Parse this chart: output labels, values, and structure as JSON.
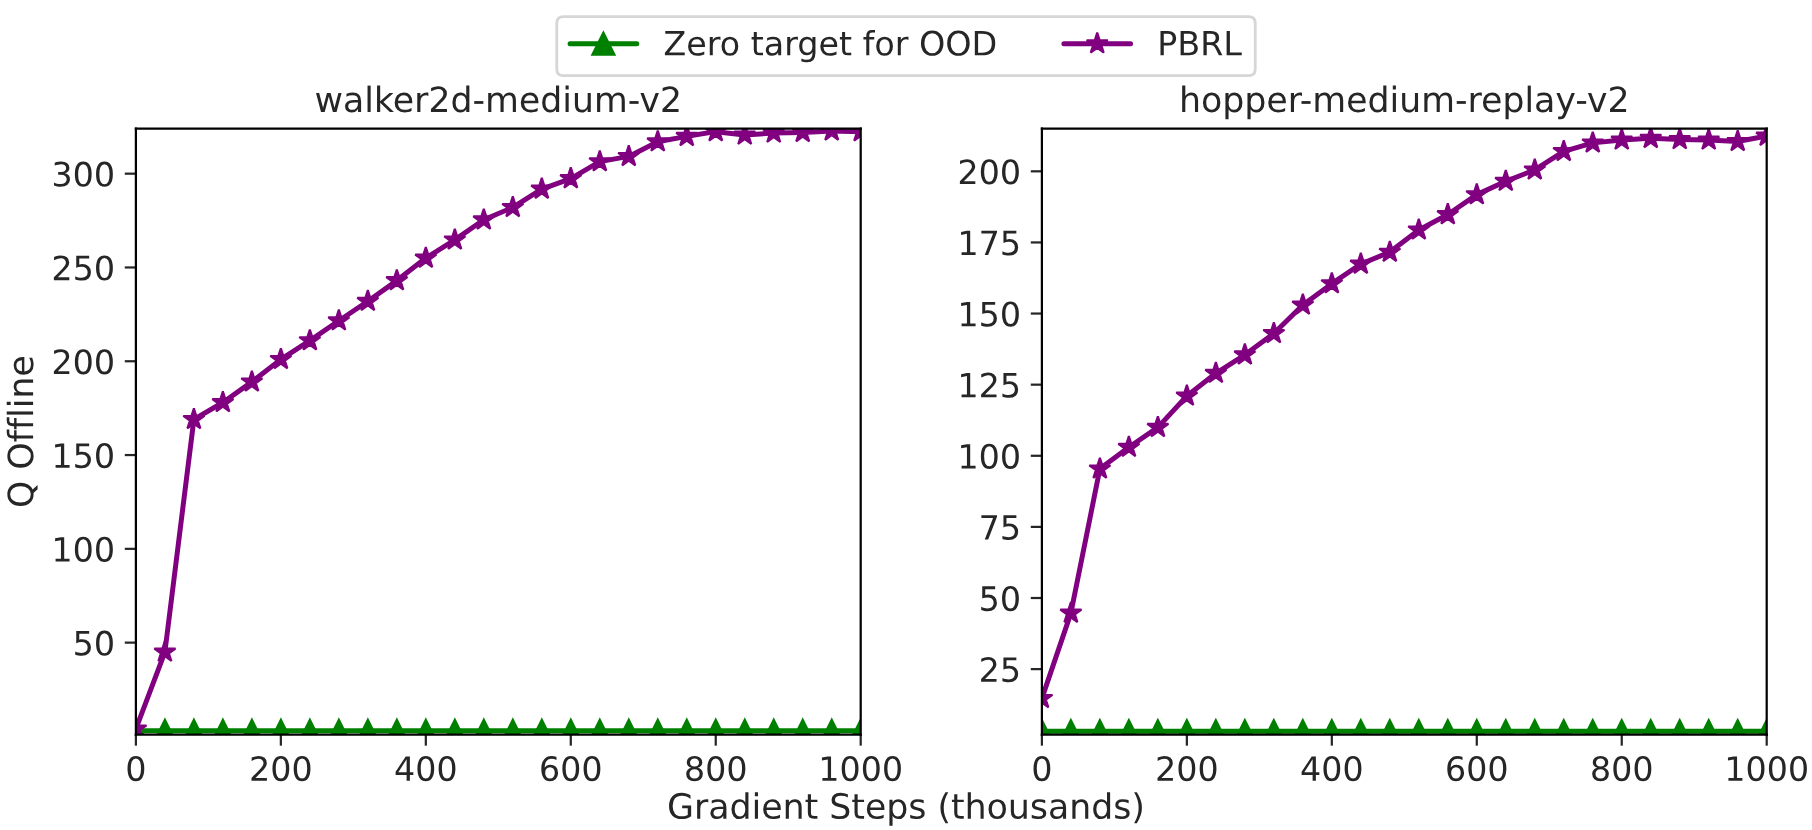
{
  "chart_data": [
    {
      "type": "line",
      "title": "walker2d-medium-v2",
      "ylabel": "Q Offline",
      "xlabel": "Gradient Steps (thousands)",
      "legend": "top",
      "xlim": [
        0,
        1000
      ],
      "ylim": [
        1,
        324
      ],
      "xticks": [
        0,
        200,
        400,
        600,
        800,
        1000
      ],
      "yticks": [
        50,
        100,
        150,
        200,
        250,
        300
      ],
      "grid": false,
      "series": [
        {
          "name": "Zero target for OOD",
          "color": "#008000",
          "marker": "triangle",
          "x": [
            0,
            40,
            80,
            120,
            160,
            200,
            240,
            280,
            320,
            360,
            400,
            440,
            480,
            520,
            560,
            600,
            640,
            680,
            720,
            760,
            800,
            840,
            880,
            920,
            960,
            1000
          ],
          "values": [
            3,
            3,
            3,
            3,
            3,
            3,
            3,
            3,
            3,
            3,
            3,
            3,
            3,
            3,
            3,
            3,
            3,
            3,
            3,
            3,
            3,
            3,
            3,
            3,
            3,
            3
          ]
        },
        {
          "name": "PBRL",
          "color": "#800080",
          "marker": "star",
          "x": [
            0,
            40,
            80,
            120,
            160,
            200,
            240,
            280,
            320,
            360,
            400,
            440,
            480,
            520,
            560,
            600,
            640,
            680,
            720,
            760,
            800,
            840,
            880,
            920,
            960,
            1000
          ],
          "values": [
            4,
            45,
            169,
            178,
            189,
            201,
            211,
            221.6,
            232,
            243,
            255,
            264.7,
            275.4,
            282,
            291.8,
            297.4,
            306.4,
            309.2,
            317,
            319.9,
            322.4,
            320.6,
            321.7,
            322,
            322.8,
            322.4
          ]
        }
      ]
    },
    {
      "type": "line",
      "title": "hopper-medium-replay-v2",
      "xlim": [
        0,
        1000
      ],
      "ylim": [
        2,
        215
      ],
      "xticks": [
        0,
        200,
        400,
        600,
        800,
        1000
      ],
      "yticks": [
        25,
        50,
        75,
        100,
        125,
        150,
        175,
        200
      ],
      "grid": false,
      "series": [
        {
          "name": "Zero target for OOD",
          "color": "#008000",
          "marker": "triangle",
          "x": [
            0,
            40,
            80,
            120,
            160,
            200,
            240,
            280,
            320,
            360,
            400,
            440,
            480,
            520,
            560,
            600,
            640,
            680,
            720,
            760,
            800,
            840,
            880,
            920,
            960,
            1000
          ],
          "values": [
            3.2,
            3.2,
            3.2,
            3.2,
            3.2,
            3.2,
            3.2,
            3.2,
            3.2,
            3.2,
            3.2,
            3.2,
            3.2,
            3.2,
            3.2,
            3.2,
            3.2,
            3.2,
            3.2,
            3.2,
            3.2,
            3.2,
            3.2,
            3.2,
            3.2,
            3.2
          ]
        },
        {
          "name": "PBRL",
          "color": "#800080",
          "marker": "star",
          "x": [
            0,
            40,
            80,
            120,
            160,
            200,
            240,
            280,
            320,
            360,
            400,
            440,
            480,
            520,
            560,
            600,
            640,
            680,
            720,
            760,
            800,
            840,
            880,
            920,
            960,
            1000
          ],
          "values": [
            14.7,
            44.7,
            95.4,
            103,
            110,
            121,
            129,
            135.5,
            143,
            153,
            160.5,
            167.4,
            171.6,
            179.4,
            184.8,
            191.8,
            196.5,
            200.5,
            207,
            210,
            211,
            211.6,
            211.2,
            211,
            210.5,
            212.4
          ]
        }
      ]
    }
  ]
}
